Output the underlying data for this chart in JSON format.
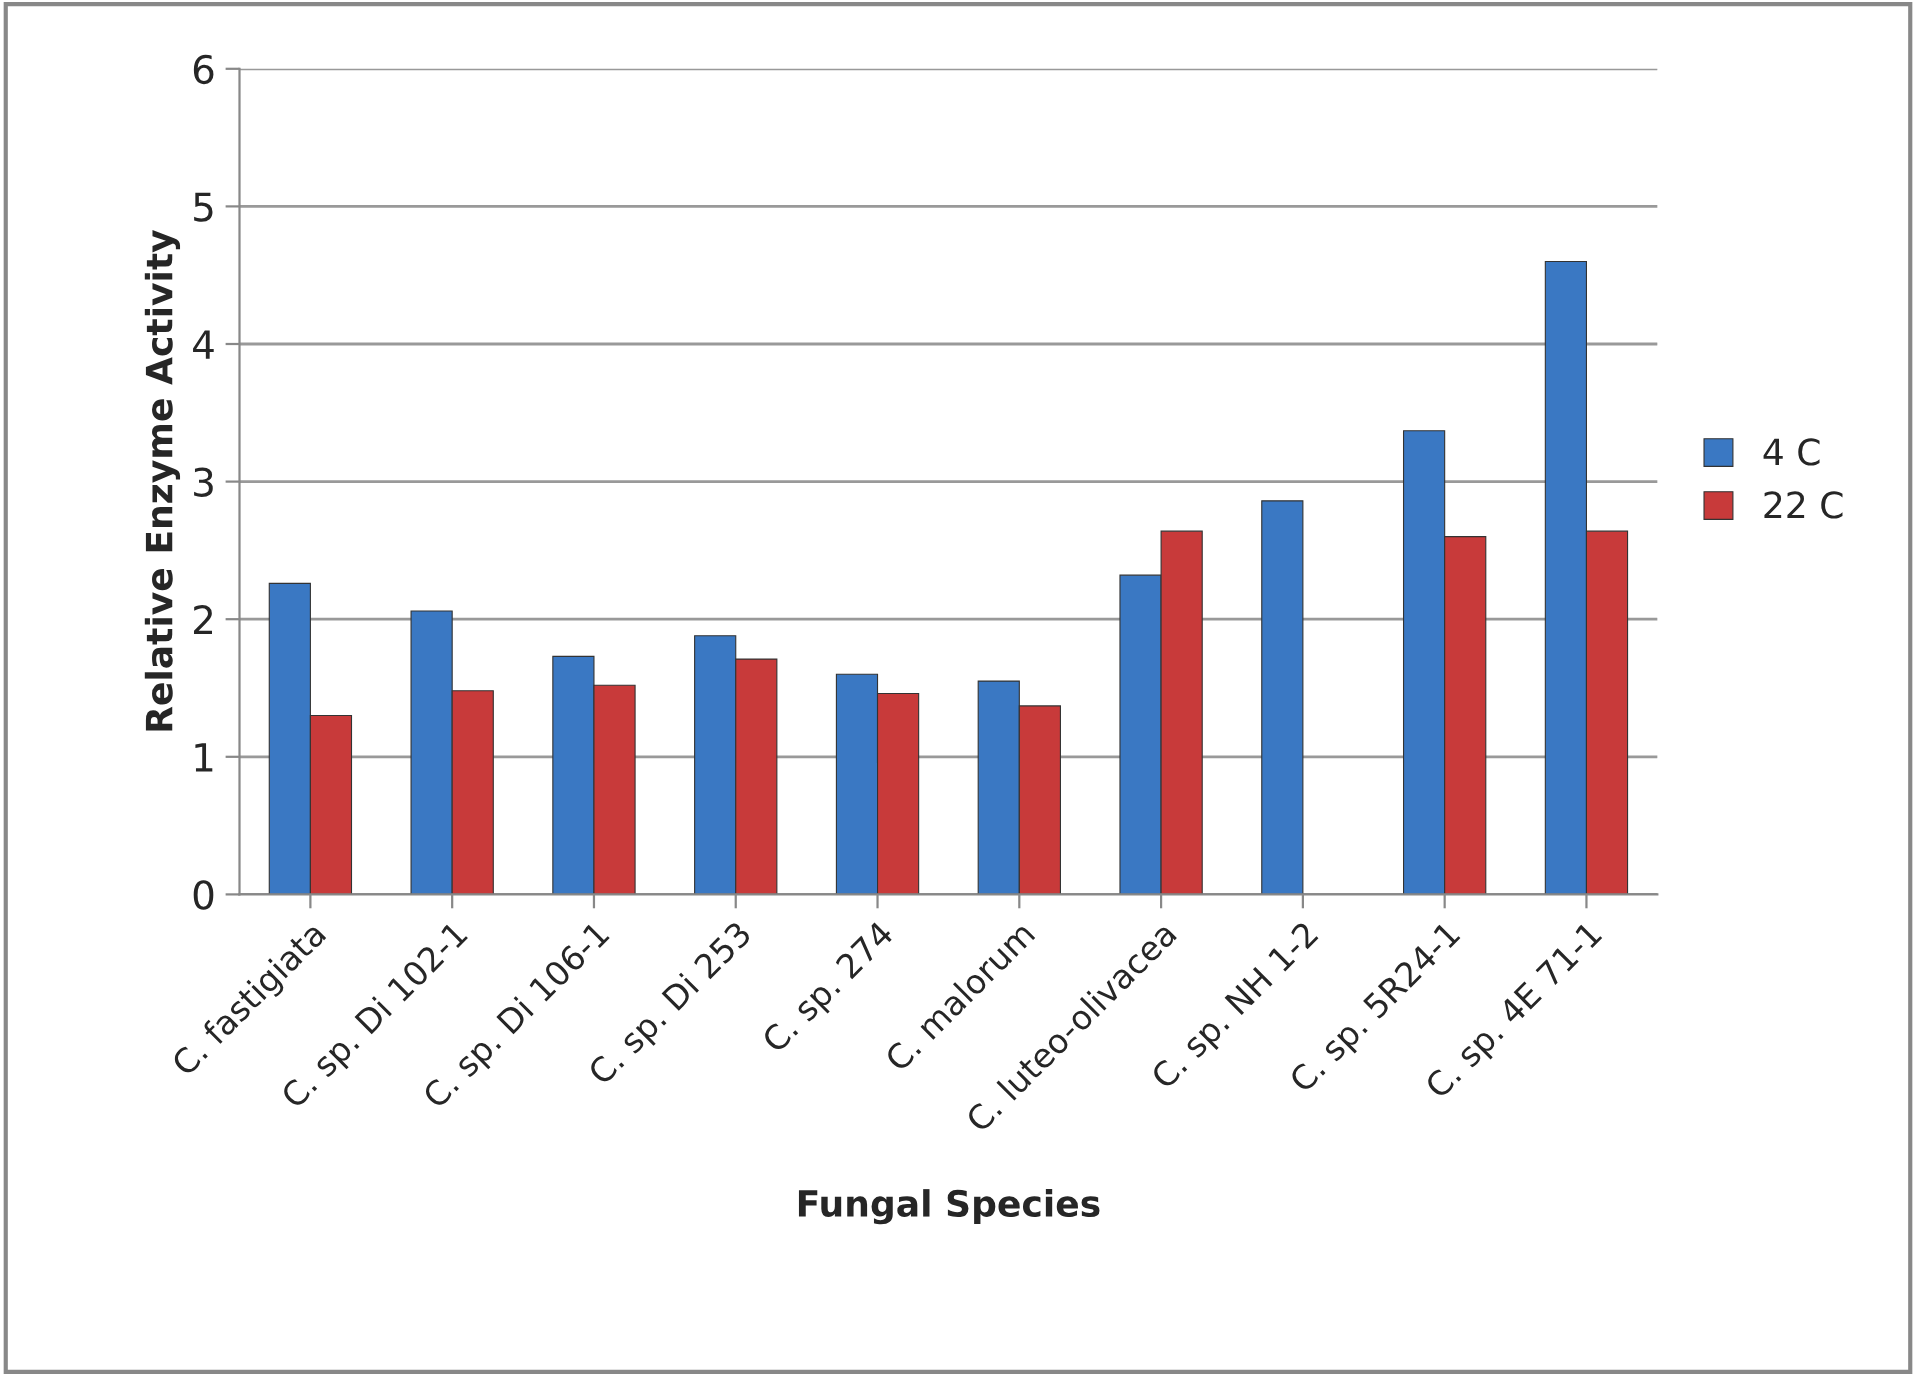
{
  "chart_data": {
    "type": "bar",
    "xlabel": "Fungal Species",
    "ylabel": "Relative Enzyme Activity",
    "categories": [
      "C. fastigiata",
      "C. sp. Di 102-1",
      "C. sp. Di 106-1",
      "C. sp. Di 253",
      "C. sp. 274",
      "C. malorum",
      "C. luteo-olivacea",
      "C. sp. NH 1-2",
      "C. sp. 5R24-1",
      "C. sp. 4E 71-1"
    ],
    "series": [
      {
        "name": "4 C",
        "color": "#3a78c3",
        "values": [
          2.26,
          2.06,
          1.73,
          1.88,
          1.6,
          1.55,
          2.32,
          2.86,
          3.37,
          4.6
        ]
      },
      {
        "name": "22 C",
        "color": "#c83a3a",
        "values": [
          1.3,
          1.48,
          1.52,
          1.71,
          1.46,
          1.37,
          2.64,
          null,
          2.6,
          2.64
        ]
      }
    ],
    "ylim": [
      0,
      6
    ],
    "yticks": [
      0,
      1,
      2,
      3,
      4,
      5,
      6
    ],
    "grid": "y",
    "legend": "right"
  }
}
